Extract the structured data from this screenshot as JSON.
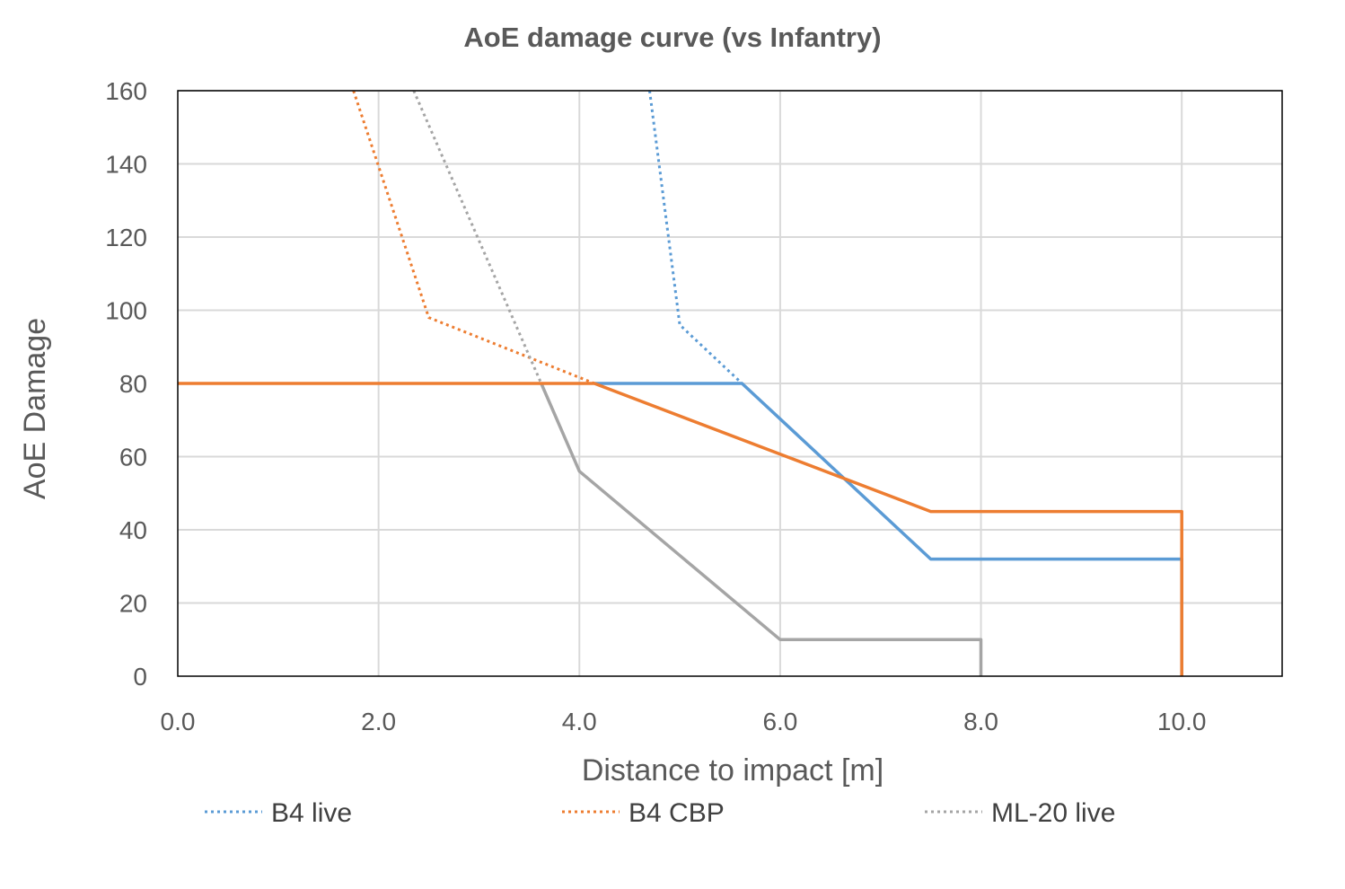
{
  "chart_data": {
    "type": "line",
    "title": "AoE damage curve (vs Infantry)",
    "xlabel": "Distance to impact [m]",
    "ylabel": "AoE Damage",
    "xlim": [
      0,
      11
    ],
    "ylim": [
      0,
      160
    ],
    "xticks": [
      "0.0",
      "2.0",
      "4.0",
      "6.0",
      "8.0",
      "10.0"
    ],
    "xtick_values": [
      0,
      2,
      4,
      6,
      8,
      10
    ],
    "yticks": [
      "0",
      "20",
      "40",
      "60",
      "80",
      "100",
      "120",
      "140",
      "160"
    ],
    "ytick_values": [
      0,
      20,
      40,
      60,
      80,
      100,
      120,
      140,
      160
    ],
    "grid": true,
    "legend_position": "bottom",
    "colors": {
      "blue": "#5b9bd5",
      "orange": "#ed7d31",
      "gray": "#a5a5a5",
      "grid": "#d9d9d9",
      "frame": "#000000"
    },
    "series": [
      {
        "name": "B4 live",
        "color": "#5b9bd5",
        "style": "dotted",
        "legend": true,
        "x": [
          4.7,
          5.0,
          5.62
        ],
        "y": [
          160,
          96,
          80
        ]
      },
      {
        "name": "B4 CBP",
        "color": "#ed7d31",
        "style": "dotted",
        "legend": true,
        "x": [
          1.75,
          2.5,
          4.15
        ],
        "y": [
          160,
          98,
          80
        ]
      },
      {
        "name": "ML-20 live",
        "color": "#a5a5a5",
        "style": "dotted",
        "legend": true,
        "x": [
          2.35,
          3.62
        ],
        "y": [
          160,
          80
        ]
      },
      {
        "name": "",
        "color": "#a5a5a5",
        "style": "solid",
        "legend": false,
        "x": [
          3.62,
          4.0,
          6.0,
          8.0,
          8.0
        ],
        "y": [
          80,
          56,
          10,
          10,
          0
        ]
      },
      {
        "name": "",
        "color": "#5b9bd5",
        "style": "solid",
        "legend": false,
        "x": [
          4.15,
          5.62,
          7.5,
          10.0,
          10.0
        ],
        "y": [
          80,
          80,
          32,
          32,
          0
        ]
      },
      {
        "name": "",
        "color": "#ed7d31",
        "style": "solid",
        "legend": false,
        "x": [
          0,
          4.15,
          7.5,
          10.0,
          10.0
        ],
        "y": [
          80,
          80,
          45,
          45,
          0
        ]
      }
    ]
  }
}
